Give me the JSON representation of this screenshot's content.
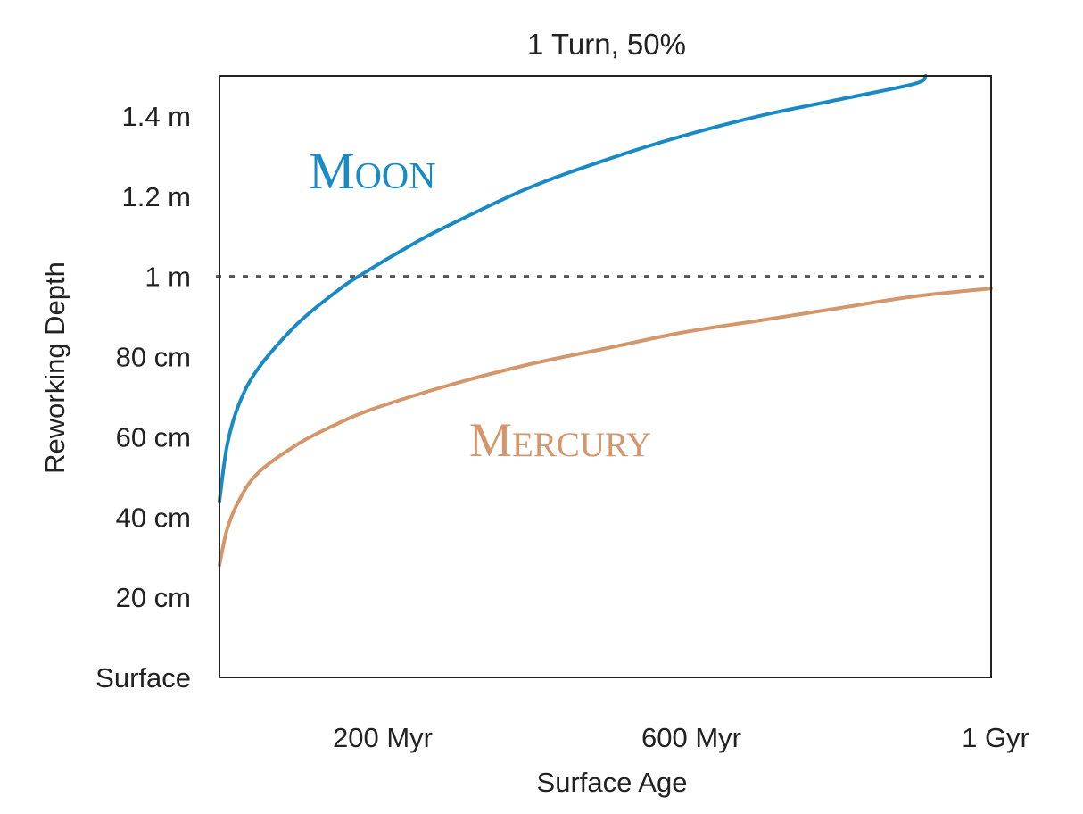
{
  "chart_data": {
    "type": "line",
    "title": "1 Turn, 50%",
    "xlabel": "Surface Age",
    "ylabel": "Reworking Depth",
    "xlim": [
      0,
      1000
    ],
    "ylim": [
      0,
      150
    ],
    "x_ticks": [
      {
        "value": 200,
        "label": "200 Myr"
      },
      {
        "value": 600,
        "label": "600 Myr"
      },
      {
        "value": 1000,
        "label": "1 Gyr"
      }
    ],
    "y_ticks": [
      {
        "value": 0,
        "label": "Surface"
      },
      {
        "value": 20,
        "label": "20 cm"
      },
      {
        "value": 40,
        "label": "40 cm"
      },
      {
        "value": 60,
        "label": "60 cm"
      },
      {
        "value": 80,
        "label": "80 cm"
      },
      {
        "value": 100,
        "label": "1 m"
      },
      {
        "value": 120,
        "label": "1.2 m"
      },
      {
        "value": 140,
        "label": "1.4 m"
      }
    ],
    "reference_line": {
      "y": 100,
      "style": "dotted",
      "color": "#555555"
    },
    "grid": false,
    "series": [
      {
        "name": "Moon",
        "label_initial": "M",
        "label_rest": "OON",
        "color": "#1a8ac6",
        "x": [
          0,
          10,
          25,
          50,
          100,
          150,
          180,
          250,
          300,
          400,
          500,
          600,
          700,
          800,
          900,
          915
        ],
        "y": [
          44,
          58,
          68,
          77,
          88,
          96,
          100,
          108,
          113,
          122,
          129,
          135,
          140,
          144,
          148,
          150
        ]
      },
      {
        "name": "Mercury",
        "label_initial": "M",
        "label_rest": "ERCURY",
        "color": "#d4966b",
        "x": [
          0,
          10,
          25,
          50,
          100,
          150,
          200,
          300,
          400,
          500,
          600,
          700,
          800,
          900,
          1000
        ],
        "y": [
          28,
          37,
          44,
          51,
          58,
          63,
          67,
          73,
          78,
          82,
          86,
          89,
          92,
          95,
          97
        ]
      }
    ]
  }
}
